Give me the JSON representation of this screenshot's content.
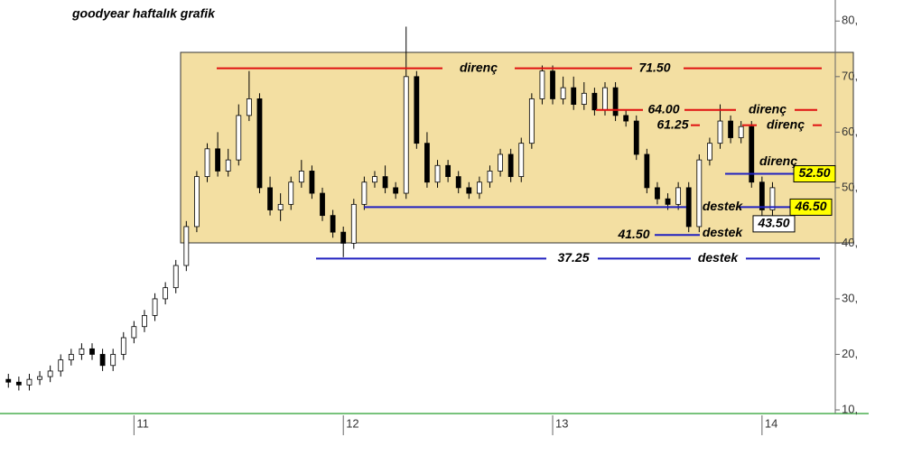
{
  "chart_data": {
    "type": "candlestick",
    "title": "goodyear haftalık grafik",
    "xlim": [
      10.36,
      14.35
    ],
    "xticks": [
      11,
      12,
      13,
      14
    ],
    "ylim": [
      10,
      82
    ],
    "yticks": [
      {
        "value": 80,
        "label": "80,"
      },
      {
        "value": 70,
        "label": "70,"
      },
      {
        "value": 60,
        "label": "60,"
      },
      {
        "value": 50,
        "label": "50,"
      },
      {
        "value": 40,
        "label": "40,"
      },
      {
        "value": 30,
        "label": "30,"
      },
      {
        "value": 20,
        "label": "20,"
      },
      {
        "value": 10,
        "label": "10,"
      }
    ],
    "up_color": "#ffffff",
    "down_color": "#000000",
    "x": [
      10.4,
      10.45,
      10.5,
      10.55,
      10.6,
      10.65,
      10.7,
      10.75,
      10.8,
      10.85,
      10.9,
      10.95,
      11.0,
      11.05,
      11.1,
      11.15,
      11.2,
      11.25,
      11.3,
      11.35,
      11.4,
      11.45,
      11.5,
      11.55,
      11.6,
      11.65,
      11.7,
      11.75,
      11.8,
      11.85,
      11.9,
      11.95,
      12.0,
      12.05,
      12.1,
      12.15,
      12.2,
      12.25,
      12.3,
      12.35,
      12.4,
      12.45,
      12.5,
      12.55,
      12.6,
      12.65,
      12.7,
      12.75,
      12.8,
      12.85,
      12.9,
      12.95,
      13.0,
      13.05,
      13.1,
      13.15,
      13.2,
      13.25,
      13.3,
      13.35,
      13.4,
      13.45,
      13.5,
      13.55,
      13.6,
      13.65,
      13.7,
      13.75,
      13.8,
      13.85,
      13.9,
      13.95,
      14.0,
      14.05
    ],
    "open": [
      15.5,
      15,
      14.5,
      15.5,
      16,
      17,
      19,
      20,
      21,
      20,
      18,
      20,
      23,
      25,
      27,
      30,
      32,
      36,
      43,
      52,
      57,
      53,
      55,
      63,
      66,
      50,
      46,
      47,
      51,
      53,
      49,
      45,
      42,
      40,
      47,
      51,
      52,
      50,
      49,
      70,
      58,
      51,
      54,
      52,
      50,
      49,
      51,
      53,
      56,
      52,
      58,
      66,
      71,
      66,
      68,
      65,
      67,
      64,
      68,
      63,
      62,
      56,
      50,
      48,
      47,
      50,
      43,
      55,
      58,
      62,
      59,
      61,
      51,
      46
    ],
    "high": [
      16.5,
      16,
      16.5,
      17,
      18,
      20,
      21,
      22,
      22,
      21,
      21,
      24,
      26,
      28,
      31,
      33,
      37,
      44,
      53,
      58,
      60,
      57,
      65,
      71,
      67,
      52,
      49,
      52,
      55,
      54,
      50,
      46,
      43,
      48,
      52,
      53,
      54,
      51,
      79,
      71,
      60,
      55,
      55,
      53,
      51,
      52,
      54,
      57,
      57,
      59,
      67,
      72,
      72,
      70,
      70,
      69,
      68,
      69,
      69,
      64,
      63,
      57,
      51,
      49,
      51,
      51,
      56,
      59,
      65,
      63,
      62,
      62,
      52,
      51
    ],
    "low": [
      14,
      13.5,
      13.5,
      14.5,
      15,
      16,
      18,
      19,
      19,
      17,
      17,
      19,
      22,
      24,
      26,
      29,
      31,
      35,
      42,
      51,
      52,
      52,
      54,
      62,
      49,
      45,
      44,
      46,
      50,
      48,
      44,
      41,
      37.5,
      39,
      46,
      50,
      49,
      48,
      48,
      57,
      50,
      50,
      51,
      49,
      48,
      48,
      50,
      52,
      51,
      51,
      57,
      65,
      65,
      65,
      64,
      64,
      63,
      63,
      62,
      61,
      55,
      49,
      47,
      46,
      46,
      42,
      42,
      54,
      57,
      58,
      58,
      50,
      45,
      45
    ],
    "close": [
      15,
      14.5,
      15.5,
      16,
      17,
      19,
      20,
      21,
      20,
      18,
      20,
      23,
      25,
      27,
      30,
      32,
      36,
      43,
      52,
      57,
      53,
      55,
      63,
      66,
      50,
      46,
      47,
      51,
      53,
      49,
      45,
      42,
      40,
      47,
      51,
      52,
      50,
      49,
      70,
      58,
      51,
      54,
      52,
      50,
      49,
      51,
      53,
      56,
      52,
      58,
      66,
      71,
      66,
      68,
      65,
      67,
      64,
      68,
      63,
      62,
      56,
      50,
      48,
      47,
      50,
      43,
      55,
      58,
      62,
      59,
      61,
      51,
      46,
      50
    ],
    "levels": [
      {
        "value": 71.5,
        "label": "71.50",
        "tag": "direnç",
        "color": "#e01010"
      },
      {
        "value": 64,
        "label": "64.00",
        "tag": "direnç",
        "color": "#e01010"
      },
      {
        "value": 61.25,
        "label": "61.25",
        "tag": "direnç",
        "color": "#e01010"
      },
      {
        "value": 52.5,
        "label": "52.50",
        "tag": "direnç",
        "color": "#2020c0"
      },
      {
        "value": 46.5,
        "label": "46.50",
        "tag": "destek",
        "color": "#2020c0"
      },
      {
        "value": 43.5,
        "label": "43.50",
        "color": "#2020c0"
      },
      {
        "value": 41.5,
        "label": "41.50",
        "tag": "destek",
        "color": "#2020c0"
      },
      {
        "value": 37.25,
        "label": "37.25",
        "tag": "destek",
        "color": "#2020c0"
      }
    ]
  }
}
